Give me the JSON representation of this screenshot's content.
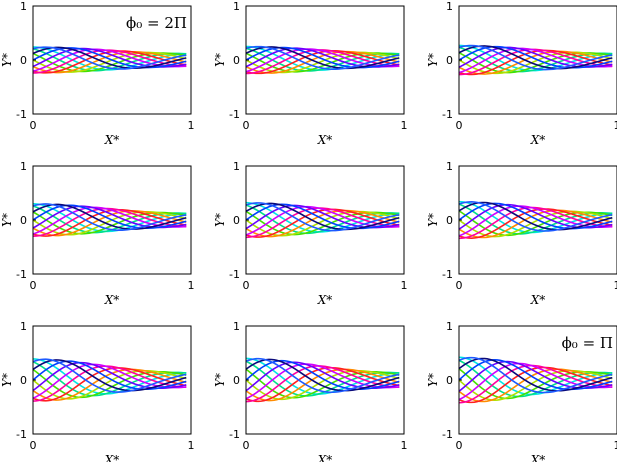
{
  "figure": {
    "rows": 3,
    "cols": 3,
    "xlabel": "X*",
    "ylabel": "Y*",
    "xlim": [
      0,
      1
    ],
    "ylim": [
      -1,
      1
    ],
    "x_ticks": [
      "0",
      "1"
    ],
    "y_ticks": [
      "1",
      "0",
      "-1"
    ],
    "grid": false,
    "annotations": [
      {
        "panel": 0,
        "text": "ϕ₀ = 2Π",
        "place": "top-right"
      },
      {
        "panel": 8,
        "text": "ϕ₀ = Π",
        "place": "top-right"
      }
    ]
  },
  "chart_data": {
    "type": "line",
    "x_range": [
      0,
      0.97
    ],
    "series_colors": [
      "#00e5e5",
      "#00e08a",
      "#46e000",
      "#b0e000",
      "#ff8c00",
      "#ff2020",
      "#ff00a0",
      "#d000ff",
      "#6a00ff",
      "#0040ff",
      "#0a0a7a",
      "#1e5aff"
    ],
    "panels": [
      {
        "amplitude": 0.24,
        "skew": 0.0
      },
      {
        "amplitude": 0.25,
        "skew": 0.02
      },
      {
        "amplitude": 0.27,
        "skew": 0.05
      },
      {
        "amplitude": 0.3,
        "skew": 0.08
      },
      {
        "amplitude": 0.32,
        "skew": 0.1
      },
      {
        "amplitude": 0.34,
        "skew": 0.12
      },
      {
        "amplitude": 0.39,
        "skew": 0.15
      },
      {
        "amplitude": 0.4,
        "skew": 0.16
      },
      {
        "amplitude": 0.42,
        "skew": 0.18
      }
    ]
  }
}
